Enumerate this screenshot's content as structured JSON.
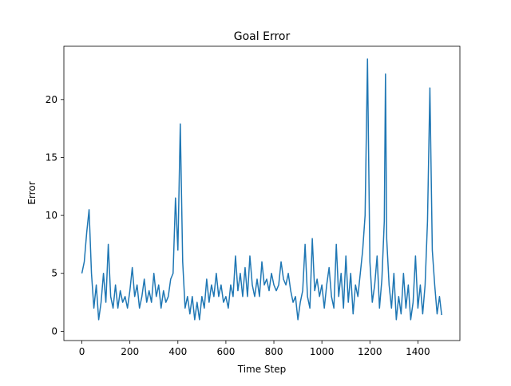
{
  "chart_data": {
    "type": "line",
    "title": "Goal Error",
    "x_label": "Time Step",
    "y_label": "Error",
    "x": [
      0,
      10,
      20,
      30,
      40,
      50,
      60,
      70,
      80,
      90,
      100,
      110,
      120,
      130,
      140,
      150,
      160,
      170,
      180,
      190,
      200,
      210,
      220,
      230,
      240,
      250,
      260,
      270,
      280,
      290,
      300,
      310,
      320,
      330,
      340,
      350,
      360,
      370,
      380,
      390,
      400,
      410,
      420,
      430,
      440,
      450,
      460,
      470,
      480,
      490,
      500,
      510,
      520,
      530,
      540,
      550,
      560,
      570,
      580,
      590,
      600,
      610,
      620,
      630,
      640,
      650,
      660,
      670,
      680,
      690,
      700,
      710,
      720,
      730,
      740,
      750,
      760,
      770,
      780,
      790,
      800,
      810,
      820,
      830,
      840,
      850,
      860,
      870,
      880,
      890,
      900,
      910,
      920,
      930,
      940,
      950,
      960,
      970,
      980,
      990,
      1000,
      1010,
      1020,
      1030,
      1040,
      1050,
      1060,
      1070,
      1080,
      1090,
      1100,
      1110,
      1120,
      1130,
      1140,
      1150,
      1160,
      1170,
      1180,
      1190,
      1200,
      1210,
      1220,
      1230,
      1240,
      1250,
      1260,
      1265,
      1270,
      1280,
      1290,
      1300,
      1310,
      1320,
      1330,
      1340,
      1350,
      1360,
      1370,
      1380,
      1390,
      1400,
      1410,
      1420,
      1430,
      1440,
      1450,
      1460,
      1470,
      1480,
      1490,
      1499
    ],
    "series": [
      {
        "name": "Goal Error",
        "color": "#1f77b4",
        "values": [
          5,
          6,
          8.5,
          10.5,
          5,
          2,
          4,
          1,
          2.5,
          5,
          2.5,
          7.5,
          3,
          2,
          4,
          2,
          3.5,
          2.5,
          3,
          2,
          3.5,
          5.5,
          3,
          4,
          2,
          3,
          4.5,
          2.5,
          3.5,
          2.5,
          5,
          3,
          4,
          2,
          3.5,
          2.5,
          3,
          4.5,
          5,
          11.5,
          7,
          17.9,
          6,
          2,
          3,
          1.5,
          3,
          1,
          2.5,
          1,
          3,
          2,
          4.5,
          2.5,
          4,
          3,
          5,
          3,
          4,
          2.5,
          3,
          2,
          4,
          3,
          6.5,
          3.5,
          5,
          3,
          5.5,
          3,
          6.5,
          4,
          3,
          4.5,
          3,
          6,
          4,
          4.5,
          3.5,
          5,
          4,
          3.5,
          4,
          6,
          4.5,
          4,
          5,
          3.5,
          2.5,
          3,
          1,
          2.5,
          3.5,
          7.5,
          3,
          2,
          8,
          3.5,
          4.5,
          3,
          4,
          2,
          4,
          5.5,
          3,
          2,
          7.5,
          3,
          5,
          2,
          6.5,
          2.5,
          5,
          1.5,
          4,
          3,
          5,
          7,
          10,
          23.5,
          6,
          2.5,
          4,
          6.5,
          2,
          4.5,
          9.5,
          22.2,
          8,
          4,
          2,
          5,
          1,
          3,
          1.5,
          5,
          2,
          4,
          1,
          2.5,
          6.5,
          2,
          4,
          1.5,
          4,
          9.5,
          21,
          7,
          4,
          1.5,
          3,
          1.4
        ]
      }
    ],
    "xlim": [
      -75,
      1575
    ],
    "ylim": [
      -0.8,
      24.6
    ],
    "xticks": [
      0,
      200,
      400,
      600,
      800,
      1000,
      1200,
      1400
    ],
    "yticks": [
      0,
      5,
      10,
      15,
      20
    ],
    "grid": false
  }
}
